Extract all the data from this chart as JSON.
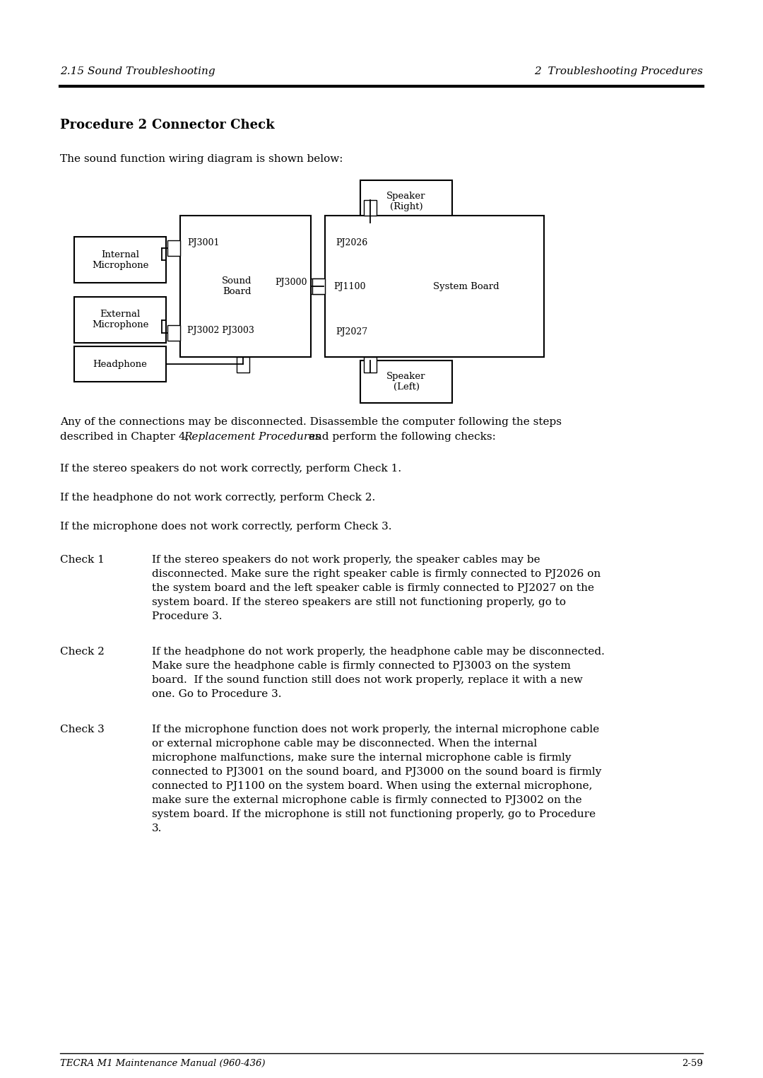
{
  "header_left": "2.15 Sound Troubleshooting",
  "header_right": "2  Troubleshooting Procedures",
  "para0": "The sound function wiring diagram is shown below:",
  "para1_a": "Any of the connections may be disconnected. Disassemble the computer following the steps",
  "para1_b": "described in Chapter 4, ",
  "para1_b_italic": "Replacement Procedures",
  "para1_b_end": " and perform the following checks:",
  "line1": "If the stereo speakers do not work correctly, perform Check 1.",
  "line2": "If the headphone do not work correctly, perform Check 2.",
  "line3": "If the microphone does not work correctly, perform Check 3.",
  "check1_label": "Check 1",
  "check1_lines": [
    "If the stereo speakers do not work properly, the speaker cables may be",
    "disconnected. Make sure the right speaker cable is firmly connected to PJ2026 on",
    "the system board and the left speaker cable is firmly connected to PJ2027 on the",
    "system board. If the stereo speakers are still not functioning properly, go to",
    "Procedure 3."
  ],
  "check2_label": "Check 2",
  "check2_lines": [
    "If the headphone do not work properly, the headphone cable may be disconnected.",
    "Make sure the headphone cable is firmly connected to PJ3003 on the system",
    "board.  If the sound function still does not work properly, replace it with a new",
    "one. Go to Procedure 3."
  ],
  "check3_label": "Check 3",
  "check3_lines": [
    "If the microphone function does not work properly, the internal microphone cable",
    "or external microphone cable may be disconnected. When the internal",
    "microphone malfunctions, make sure the internal microphone cable is firmly",
    "connected to PJ3001 on the sound board, and PJ3000 on the sound board is firmly",
    "connected to PJ1100 on the system board. When using the external microphone,",
    "make sure the external microphone cable is firmly connected to PJ3002 on the",
    "system board. If the microphone is still not functioning properly, go to Procedure",
    "3."
  ],
  "footer_left": "TECRA M1 Maintenance Manual (960-436)",
  "footer_right": "2-59",
  "bg_color": "#ffffff"
}
